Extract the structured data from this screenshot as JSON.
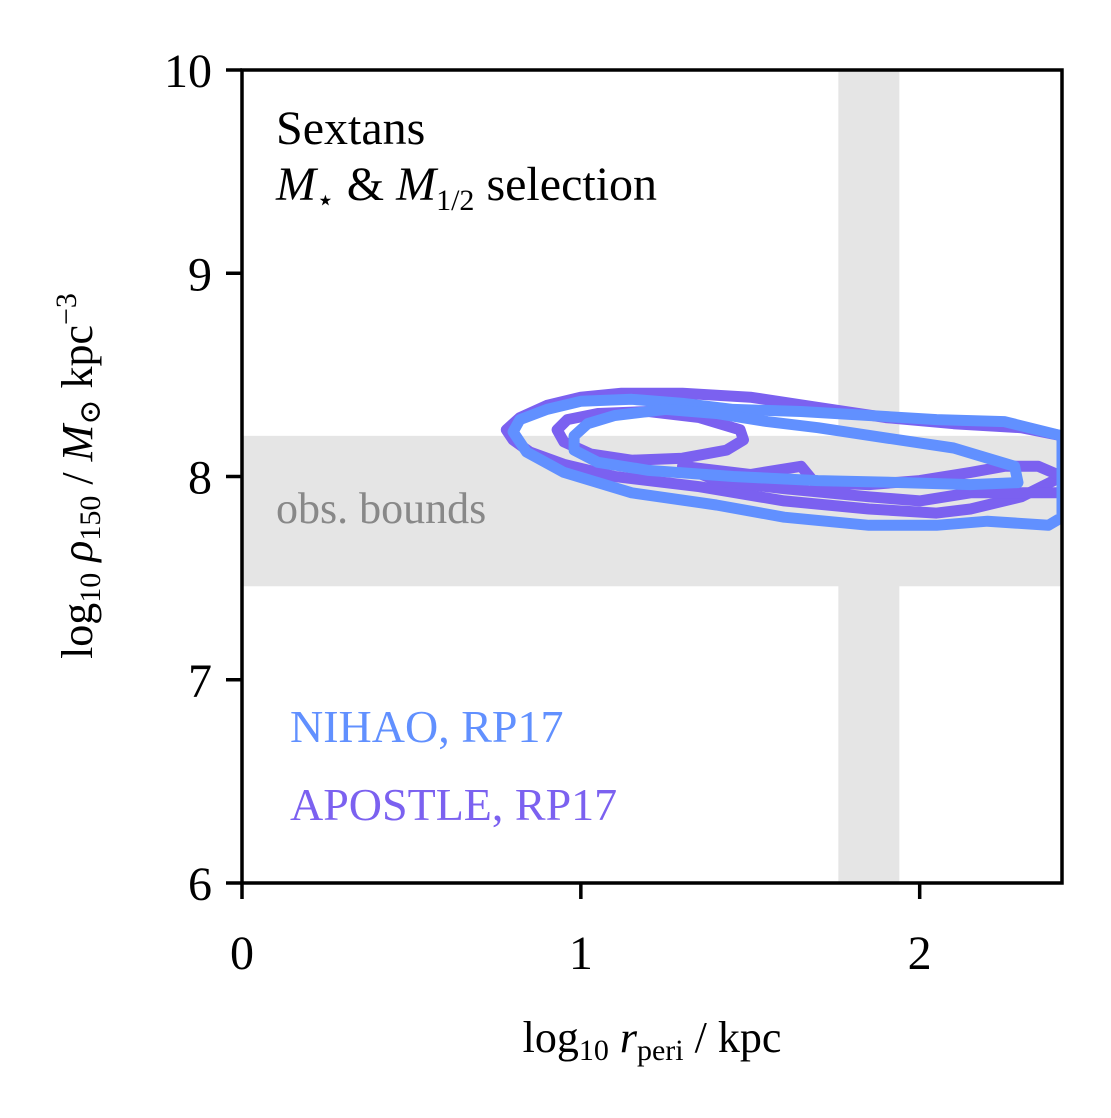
{
  "chart_data": {
    "type": "contour",
    "xlabel": "log10 r_peri / kpc",
    "ylabel": "log10 ρ150 / M⊙ kpc^-3",
    "xlim": [
      0,
      2.42
    ],
    "ylim": [
      6,
      10
    ],
    "x_ticks": [
      0,
      1,
      2
    ],
    "y_ticks": [
      6,
      7,
      8,
      9,
      10
    ],
    "x_tick_labels": [
      "0",
      "1",
      "2"
    ],
    "y_tick_labels": [
      "6",
      "7",
      "8",
      "9",
      "10"
    ],
    "annotation": {
      "line1": "Sextans",
      "line2_m_star": "M",
      "line2_m_star_sub": "⋆",
      "line2_amp": " & ",
      "line2_m_half": "M",
      "line2_m_half_sub": "1/2",
      "line2_rest": " selection"
    },
    "obs_bounds": {
      "label": "obs. bounds",
      "y_range": [
        7.46,
        8.2
      ],
      "x_range": [
        1.76,
        1.94
      ],
      "color": "#e5e5e5",
      "label_color": "#888888"
    },
    "series": [
      {
        "name": "APOSTLE, RP17",
        "color": "#7b61f0",
        "contours": [
          [
            [
              0.8,
              8.18
            ],
            [
              0.78,
              8.23
            ],
            [
              0.82,
              8.29
            ],
            [
              0.9,
              8.35
            ],
            [
              1.0,
              8.39
            ],
            [
              1.12,
              8.41
            ],
            [
              1.3,
              8.41
            ],
            [
              1.5,
              8.39
            ],
            [
              1.7,
              8.34
            ],
            [
              1.9,
              8.29
            ],
            [
              2.1,
              8.26
            ],
            [
              2.3,
              8.24
            ],
            [
              2.42,
              8.2
            ],
            [
              2.42,
              8.0
            ],
            [
              2.3,
              7.9
            ],
            [
              2.15,
              7.84
            ],
            [
              2.05,
              7.82
            ],
            [
              1.85,
              7.84
            ],
            [
              1.6,
              7.88
            ],
            [
              1.35,
              7.95
            ],
            [
              1.1,
              8.0
            ],
            [
              0.95,
              8.06
            ],
            [
              0.85,
              8.12
            ],
            [
              0.8,
              8.18
            ]
          ],
          [
            [
              0.93,
              8.23
            ],
            [
              0.96,
              8.28
            ],
            [
              1.05,
              8.31
            ],
            [
              1.2,
              8.32
            ],
            [
              1.35,
              8.29
            ],
            [
              1.47,
              8.23
            ],
            [
              1.48,
              8.18
            ],
            [
              1.43,
              8.13
            ],
            [
              1.3,
              8.09
            ],
            [
              1.15,
              8.08
            ],
            [
              1.03,
              8.11
            ],
            [
              0.95,
              8.17
            ],
            [
              0.93,
              8.23
            ]
          ],
          [
            [
              1.3,
              8.05
            ],
            [
              1.5,
              8.01
            ],
            [
              1.65,
              8.05
            ],
            [
              1.69,
              7.97
            ],
            [
              1.85,
              7.96
            ],
            [
              2.0,
              7.98
            ],
            [
              2.15,
              8.02
            ],
            [
              2.25,
              8.05
            ],
            [
              2.35,
              8.05
            ],
            [
              2.42,
              8.0
            ],
            [
              2.42,
              7.92
            ],
            [
              2.3,
              7.92
            ],
            [
              2.15,
              7.92
            ],
            [
              2.0,
              7.88
            ],
            [
              1.85,
              7.9
            ],
            [
              1.6,
              7.94
            ],
            [
              1.4,
              7.98
            ],
            [
              1.3,
              8.05
            ]
          ]
        ]
      },
      {
        "name": "NIHAO, RP17",
        "color": "#6190ff",
        "contours": [
          [
            [
              0.8,
              8.22
            ],
            [
              0.82,
              8.28
            ],
            [
              0.9,
              8.33
            ],
            [
              1.0,
              8.37
            ],
            [
              1.15,
              8.38
            ],
            [
              1.3,
              8.36
            ],
            [
              1.45,
              8.33
            ],
            [
              1.65,
              8.32
            ],
            [
              1.85,
              8.3
            ],
            [
              2.05,
              8.28
            ],
            [
              2.25,
              8.27
            ],
            [
              2.42,
              8.2
            ],
            [
              2.42,
              7.8
            ],
            [
              2.38,
              7.76
            ],
            [
              2.2,
              7.78
            ],
            [
              2.05,
              7.76
            ],
            [
              1.85,
              7.76
            ],
            [
              1.6,
              7.8
            ],
            [
              1.4,
              7.86
            ],
            [
              1.15,
              7.92
            ],
            [
              0.95,
              8.02
            ],
            [
              0.84,
              8.12
            ],
            [
              0.8,
              8.22
            ]
          ],
          [
            [
              0.98,
              8.2
            ],
            [
              1.02,
              8.26
            ],
            [
              1.1,
              8.3
            ],
            [
              1.25,
              8.33
            ],
            [
              1.4,
              8.31
            ],
            [
              1.55,
              8.27
            ],
            [
              1.7,
              8.24
            ],
            [
              1.9,
              8.19
            ],
            [
              2.1,
              8.14
            ],
            [
              2.28,
              8.05
            ],
            [
              2.29,
              7.97
            ],
            [
              2.15,
              7.96
            ],
            [
              1.95,
              7.97
            ],
            [
              1.7,
              7.98
            ],
            [
              1.45,
              8.0
            ],
            [
              1.2,
              8.03
            ],
            [
              1.05,
              8.07
            ],
            [
              0.98,
              8.13
            ],
            [
              0.98,
              8.2
            ]
          ]
        ]
      }
    ],
    "legend": [
      {
        "label": "NIHAO, RP17",
        "color": "#6190ff"
      },
      {
        "label": "APOSTLE, RP17",
        "color": "#7b61f0"
      }
    ],
    "grid": false,
    "legend_position": "bottom-left"
  }
}
